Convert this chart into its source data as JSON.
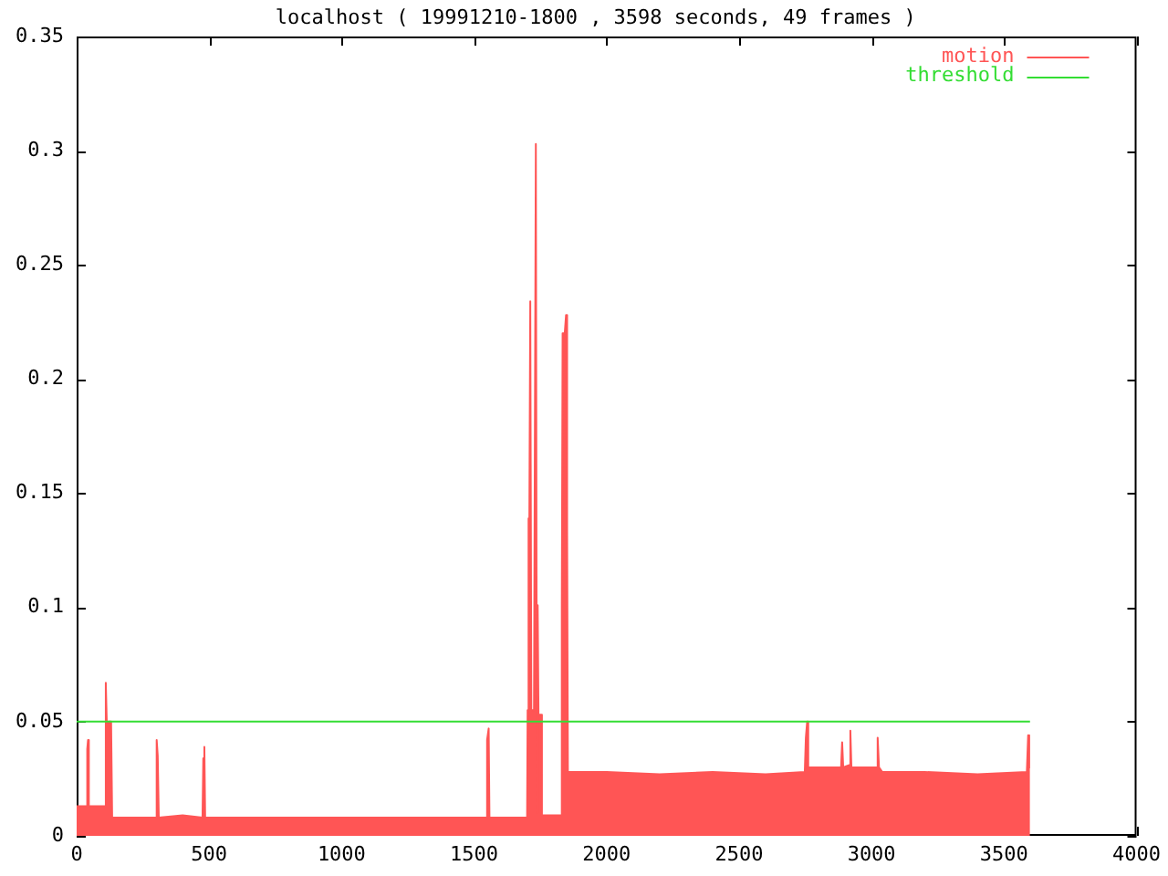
{
  "chart_data": {
    "type": "area",
    "title": "localhost ( 19991210-1800 , 3598 seconds, 49 frames )",
    "xlim": [
      0,
      4000
    ],
    "xticks": [
      0,
      500,
      1000,
      1500,
      2000,
      2500,
      3000,
      3500,
      4000
    ],
    "ylim": [
      0,
      0.35
    ],
    "yticks": [
      0,
      0.05,
      0.1,
      0.15,
      0.2,
      0.25,
      0.3,
      0.35
    ],
    "legend": "top right",
    "series": [
      {
        "name": "motion",
        "color": "#ff5555",
        "x": [
          0,
          37,
          40,
          43,
          46,
          105,
          110,
          114,
          120,
          130,
          134,
          200,
          299,
          302,
          306,
          310,
          400,
          475,
          478,
          482,
          485,
          700,
          1000,
          1300,
          1546,
          1549,
          1555,
          1558,
          1700,
          1702,
          1704,
          1707,
          1712,
          1716,
          1726,
          1733,
          1737,
          1740,
          1743,
          1753,
          1756,
          1800,
          1828,
          1831,
          1834,
          1842,
          1847,
          1851,
          1854,
          2000,
          2200,
          2400,
          2600,
          2748,
          2752,
          2757,
          2761,
          2800,
          2885,
          2889,
          2893,
          2916,
          2920,
          2924,
          3018,
          3023,
          3028,
          3040,
          3200,
          3400,
          3586,
          3591,
          3595,
          3598
        ],
        "values": [
          0.013,
          0.013,
          0.038,
          0.042,
          0.013,
          0.013,
          0.067,
          0.048,
          0.05,
          0.05,
          0.008,
          0.008,
          0.008,
          0.042,
          0.035,
          0.008,
          0.009,
          0.008,
          0.034,
          0.039,
          0.008,
          0.008,
          0.008,
          0.008,
          0.008,
          0.042,
          0.047,
          0.008,
          0.008,
          0.055,
          0.139,
          0.055,
          0.234,
          0.055,
          0.055,
          0.303,
          0.01,
          0.101,
          0.053,
          0.053,
          0.009,
          0.009,
          0.009,
          0.1,
          0.22,
          0.22,
          0.228,
          0.134,
          0.028,
          0.028,
          0.027,
          0.028,
          0.027,
          0.028,
          0.043,
          0.05,
          0.03,
          0.03,
          0.03,
          0.041,
          0.03,
          0.031,
          0.046,
          0.03,
          0.03,
          0.043,
          0.03,
          0.028,
          0.028,
          0.027,
          0.028,
          0.044,
          0.03,
          0.03
        ]
      },
      {
        "name": "threshold",
        "type": "line",
        "color": "#33dd33",
        "x": [
          0,
          3598
        ],
        "values": [
          0.05,
          0.05
        ]
      }
    ]
  }
}
